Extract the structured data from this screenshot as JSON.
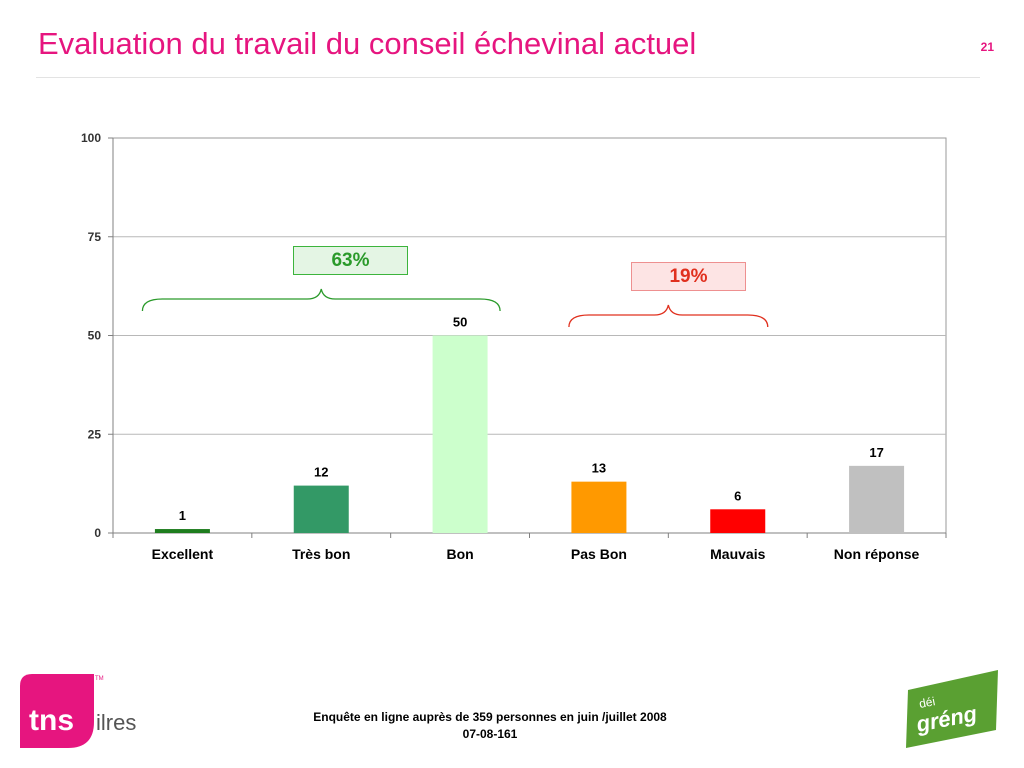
{
  "header": {
    "title": "Evaluation du travail du conseil échevinal actuel",
    "page_number": "21"
  },
  "chart_data": {
    "type": "bar",
    "categories": [
      "Excellent",
      "Très bon",
      "Bon",
      "Pas Bon",
      "Mauvais",
      "Non réponse"
    ],
    "values": [
      1,
      12,
      50,
      13,
      6,
      17
    ],
    "data_labels": [
      "1",
      "12",
      "50",
      "13",
      "6",
      "17"
    ],
    "colors": [
      "#1e7d1e",
      "#339966",
      "#ccffcc",
      "#ff9900",
      "#ff0000",
      "#c0c0c0"
    ],
    "ylim": [
      0,
      100
    ],
    "yticks": [
      0,
      25,
      50,
      75,
      100
    ],
    "grid": true,
    "legend": "none",
    "title": "",
    "xlabel": "",
    "ylabel": "",
    "groups": [
      {
        "label": "63%",
        "categories": [
          "Excellent",
          "Très bon",
          "Bon"
        ],
        "color": "#2a9a2a"
      },
      {
        "label": "19%",
        "categories": [
          "Pas Bon",
          "Mauvais"
        ],
        "color": "#e0301e"
      }
    ]
  },
  "footer": {
    "line1": "Enquête en ligne auprès de 359 personnes en juin /juillet 2008",
    "line2": "07-08-161",
    "left_logo": {
      "text_main": "tns",
      "text_sub": "ilres",
      "tm": "TM",
      "color": "#e6157f"
    },
    "right_logo": {
      "text_top": "déi",
      "text_main": "gréng",
      "color": "#5aa032"
    }
  }
}
